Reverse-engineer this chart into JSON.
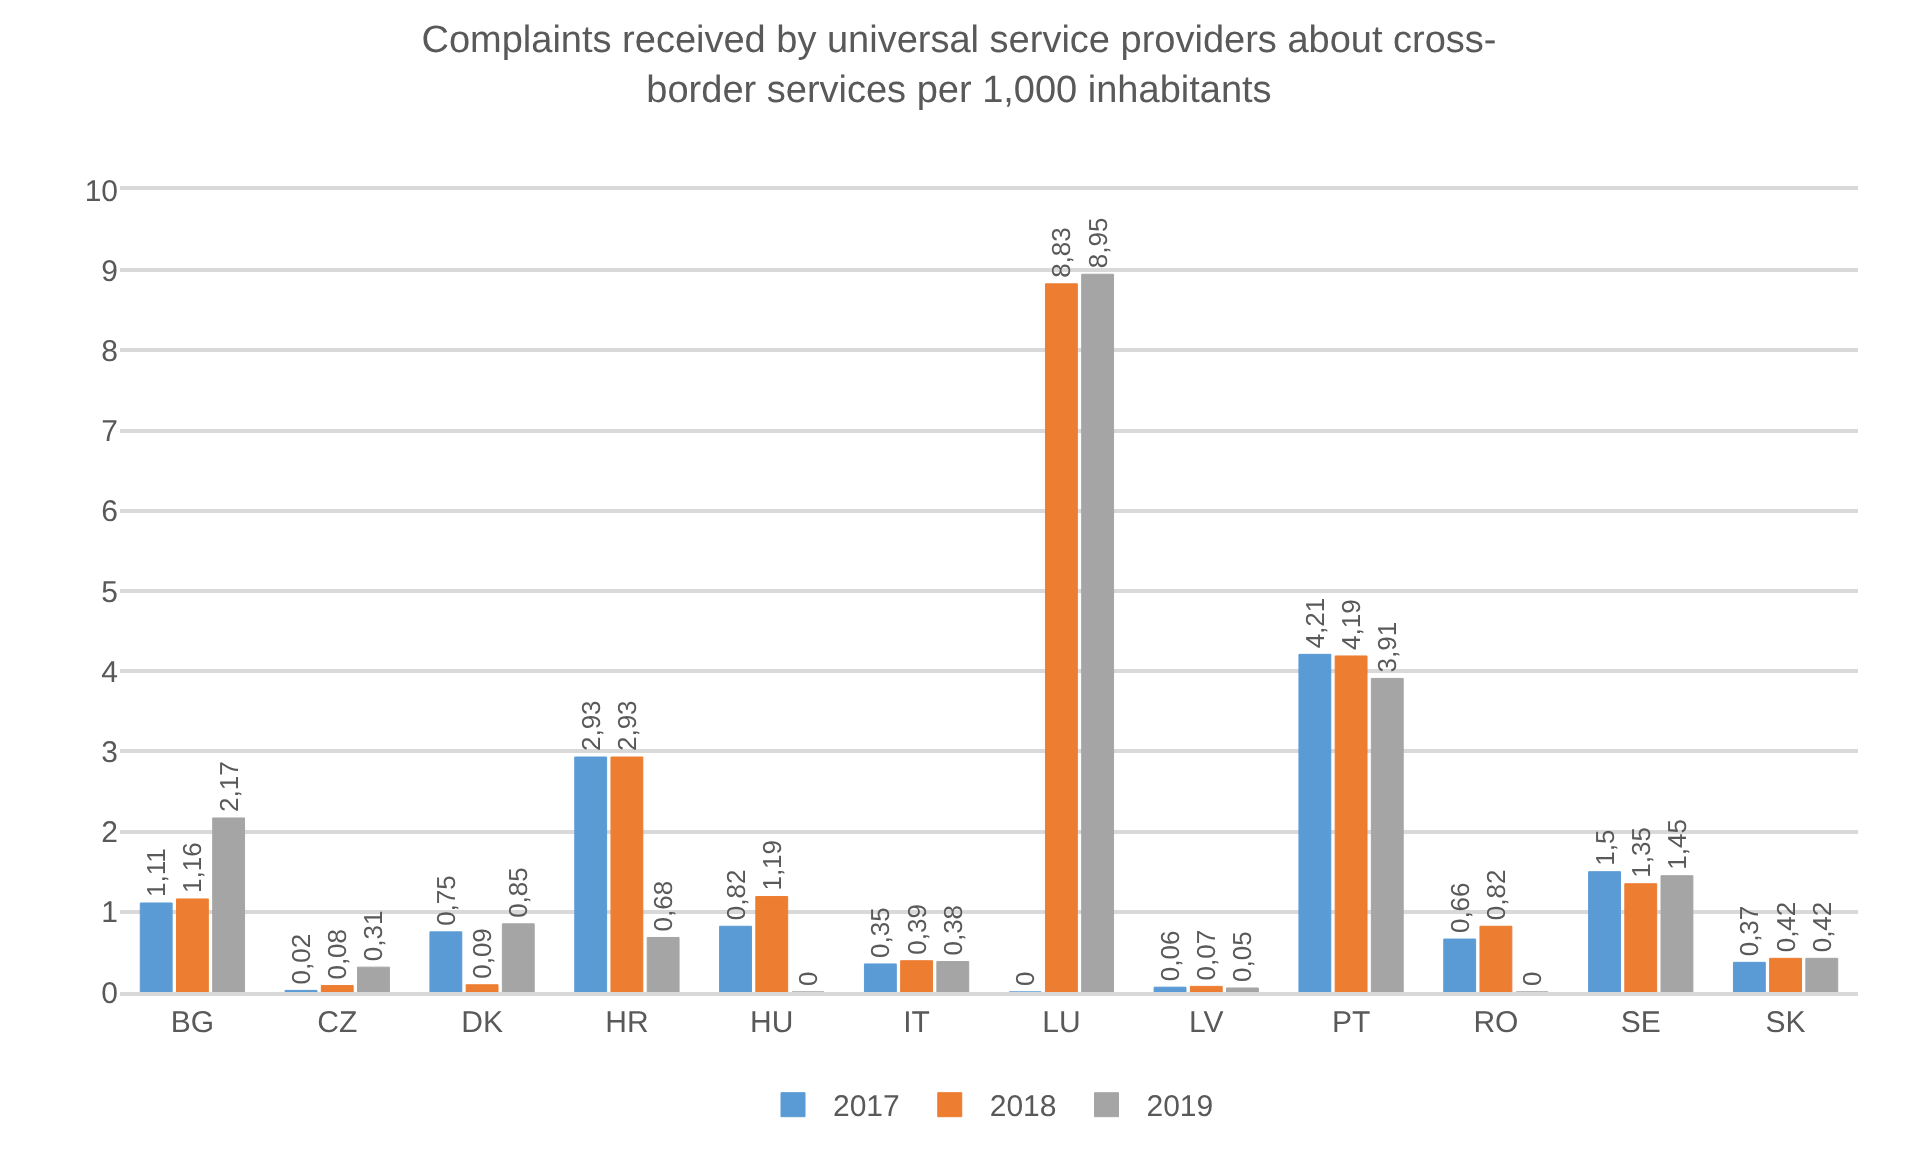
{
  "chart_data": {
    "type": "bar",
    "title": "Complaints received by universal service providers about cross-border services per 1,000 inhabitants",
    "categories": [
      "BG",
      "CZ",
      "DK",
      "HR",
      "HU",
      "IT",
      "LU",
      "LV",
      "PT",
      "RO",
      "SE",
      "SK"
    ],
    "series": [
      {
        "name": "2017",
        "color": "#5b9bd5",
        "values": [
          1.11,
          0.02,
          0.75,
          2.93,
          0.82,
          0.35,
          0,
          0.06,
          4.21,
          0.66,
          1.5,
          0.37
        ],
        "value_labels": [
          "1,11",
          "0,02",
          "0,75",
          "2,93",
          "0,82",
          "0,35",
          "0",
          "0,06",
          "4,21",
          "0,66",
          "1,5",
          "0,37"
        ]
      },
      {
        "name": "2018",
        "color": "#ed7d31",
        "values": [
          1.16,
          0.08,
          0.09,
          2.93,
          1.19,
          0.39,
          8.83,
          0.07,
          4.19,
          0.82,
          1.35,
          0.42
        ],
        "value_labels": [
          "1,16",
          "0,08",
          "0,09",
          "2,93",
          "1,19",
          "0,39",
          "8,83",
          "0,07",
          "4,19",
          "0,82",
          "1,35",
          "0,42"
        ]
      },
      {
        "name": "2019",
        "color": "#a5a5a5",
        "values": [
          2.17,
          0.31,
          0.85,
          0.68,
          0,
          0.38,
          8.95,
          0.05,
          3.91,
          0,
          1.45,
          0.42
        ],
        "value_labels": [
          "2,17",
          "0,31",
          "0,85",
          "0,68",
          "0",
          "0,38",
          "8,95",
          "0,05",
          "3,91",
          "0",
          "1,45",
          "0,42"
        ]
      }
    ],
    "ylim": [
      0,
      10
    ],
    "yticks": [
      0,
      1,
      2,
      3,
      4,
      5,
      6,
      7,
      8,
      9,
      10
    ],
    "grid": "y",
    "legend": "bottom"
  }
}
